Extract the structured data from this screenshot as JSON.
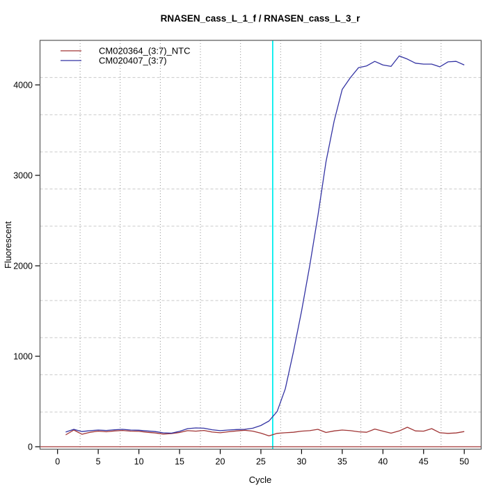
{
  "chart_data": {
    "type": "line",
    "title": "RNASEN_cass_L_1_f / RNASEN_cass_L_3_r",
    "xlabel": "Cycle",
    "ylabel": "Fluorescent",
    "x_ticks": [
      0,
      5,
      10,
      15,
      20,
      25,
      30,
      35,
      40,
      45,
      50
    ],
    "y_ticks": [
      0,
      1000,
      2000,
      3000,
      4000
    ],
    "xlim": [
      -2.2,
      52.1
    ],
    "ylim": [
      -27,
      4490
    ],
    "grid": {
      "nx": 11,
      "ny": 11,
      "h_style": "dashed",
      "v_style": "dotted",
      "h_color": "#c9c9c9",
      "v_color": "#8f8f8f"
    },
    "legend_position": "top-left",
    "threshold_line": {
      "axis": "x",
      "value": 26.45,
      "color": "#00efef"
    },
    "baseline_line": {
      "axis": "y",
      "value": 0,
      "color": "#a03434"
    },
    "x": [
      1,
      2,
      3,
      4,
      5,
      6,
      7,
      8,
      9,
      10,
      11,
      12,
      13,
      14,
      15,
      16,
      17,
      18,
      19,
      20,
      21,
      22,
      23,
      24,
      25,
      26,
      27,
      28,
      29,
      30,
      31,
      32,
      33,
      34,
      35,
      36,
      37,
      38,
      39,
      40,
      41,
      42,
      43,
      44,
      45,
      46,
      47,
      48,
      49,
      50
    ],
    "series": [
      {
        "name": "CM020364_(3:7)_NTC",
        "color": "#a03434",
        "values": [
          131,
          185,
          138,
          160,
          172,
          165,
          175,
          180,
          172,
          170,
          160,
          152,
          140,
          145,
          158,
          178,
          172,
          180,
          162,
          155,
          165,
          175,
          182,
          172,
          150,
          120,
          148,
          155,
          160,
          172,
          178,
          192,
          158,
          175,
          185,
          178,
          165,
          160,
          195,
          172,
          150,
          175,
          215,
          175,
          172,
          200,
          155,
          148,
          152,
          168
        ]
      },
      {
        "name": "CM020407_(3:7)",
        "color": "#3333a3",
        "values": [
          162,
          192,
          168,
          178,
          185,
          180,
          188,
          192,
          185,
          182,
          175,
          168,
          154,
          150,
          170,
          200,
          208,
          205,
          188,
          178,
          185,
          190,
          192,
          205,
          235,
          285,
          390,
          640,
          1050,
          1500,
          2000,
          2550,
          3150,
          3600,
          3950,
          4080,
          4190,
          4210,
          4260,
          4220,
          4205,
          4320,
          4285,
          4240,
          4230,
          4230,
          4200,
          4255,
          4260,
          4220
        ]
      }
    ],
    "colors": {
      "box": "#555555",
      "tick": "#000000"
    }
  }
}
